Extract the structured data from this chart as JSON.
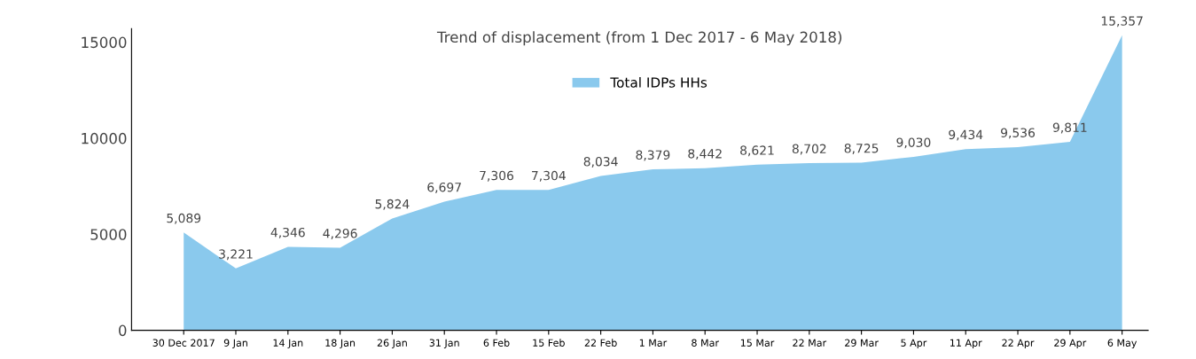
{
  "chart_data": {
    "type": "area",
    "title": "Trend of displacement (from 1 Dec 2017 - 6 May 2018)",
    "categories": [
      "30 Dec 2017",
      "9 Jan",
      "14 Jan",
      "18 Jan",
      "26 Jan",
      "31 Jan",
      "6 Feb",
      "15 Feb",
      "22 Feb",
      "1 Mar",
      "8 Mar",
      "15 Mar",
      "22 Mar",
      "29 Mar",
      "5 Apr",
      "11 Apr",
      "22 Apr",
      "29 Apr",
      "6 May"
    ],
    "series": [
      {
        "name": "Total IDPs HHs",
        "color": "#6dbbe8",
        "values": [
          5089,
          3221,
          4346,
          4296,
          5824,
          6697,
          7306,
          7304,
          8034,
          8379,
          8442,
          8621,
          8702,
          8725,
          9030,
          9434,
          9536,
          9811,
          15357
        ]
      }
    ],
    "value_labels": [
      "5,089",
      "3,221",
      "4,346",
      "4,296",
      "5,824",
      "6,697",
      "7,306",
      "7,304",
      "8,034",
      "8,379",
      "8,442",
      "8,621",
      "8,702",
      "8,725",
      "9,030",
      "9,434",
      "9,536",
      "9,811",
      "15,357"
    ],
    "ylim": [
      0,
      15700
    ],
    "yticks": [
      0,
      5000,
      10000,
      15000
    ],
    "grid": false,
    "legend": "top"
  }
}
